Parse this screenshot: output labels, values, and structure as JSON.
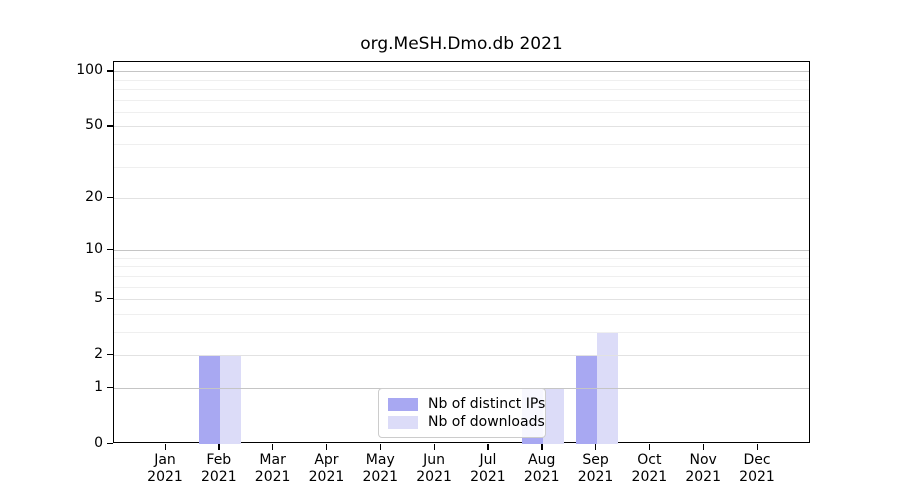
{
  "chart_data": {
    "type": "bar",
    "title": "org.MeSH.Dmo.db 2021",
    "categories": [
      "Jan 2021",
      "Feb 2021",
      "Mar 2021",
      "Apr 2021",
      "May 2021",
      "Jun 2021",
      "Jul 2021",
      "Aug 2021",
      "Sep 2021",
      "Oct 2021",
      "Nov 2021",
      "Dec 2021"
    ],
    "category_line1": [
      "Jan",
      "Feb",
      "Mar",
      "Apr",
      "May",
      "Jun",
      "Jul",
      "Aug",
      "Sep",
      "Oct",
      "Nov",
      "Dec"
    ],
    "category_line2": "2021",
    "series": [
      {
        "name": "Nb of distinct IPs",
        "color": "#a8a8f2",
        "values": [
          0,
          2,
          0,
          0,
          0,
          0,
          0,
          1,
          2,
          0,
          0,
          0
        ]
      },
      {
        "name": "Nb of downloads",
        "color": "#dcdcf8",
        "values": [
          0,
          2,
          0,
          0,
          0,
          0,
          0,
          1,
          3,
          0,
          0,
          0
        ]
      }
    ],
    "xlabel": "",
    "ylabel": "",
    "y_scale": "log1p",
    "ylim": [
      0,
      113
    ],
    "y_ticks": [
      0,
      1,
      2,
      5,
      10,
      20,
      50,
      100
    ],
    "gridlines": {
      "decade": [
        1,
        10,
        100
      ],
      "labeled": [
        2,
        5,
        20,
        50
      ],
      "minor": [
        3,
        4,
        6,
        7,
        8,
        9,
        30,
        40,
        60,
        70,
        80,
        90
      ]
    },
    "grid_on": true,
    "legend_position": "lower center",
    "colors": {
      "frame": "#000000",
      "text": "#000000",
      "grid_decade": "#c5c5c5",
      "grid_labeled": "#e2e2e2",
      "grid_minor": "#efefef",
      "legend_border": "#cccccc"
    }
  }
}
